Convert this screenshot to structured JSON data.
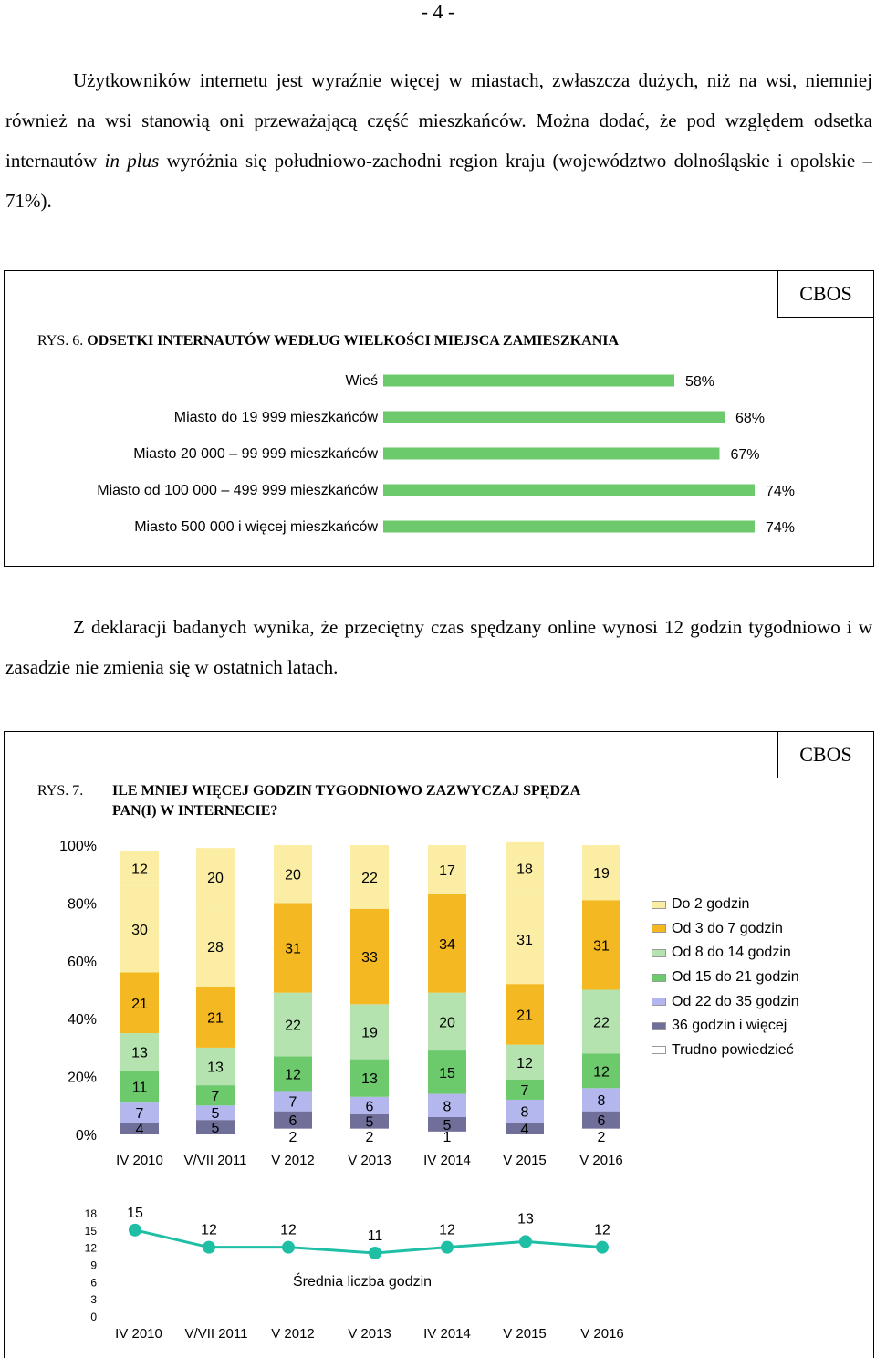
{
  "page_number": "- 4 -",
  "paragraph1": {
    "text_a": "Użytkowników internetu jest wyraźnie więcej w miastach, zwłaszcza dużych, niż na wsi, niemniej również na wsi stanowią oni przeważającą część mieszkańców. Można dodać, że pod względem odsetka internautów ",
    "text_italic": "in plus",
    "text_b": " wyróżnia się południowo-zachodni region kraju (województwo dolnośląskie i opolskie – 71%)."
  },
  "paragraph2": "Z deklaracji badanych wynika, że przeciętny czas spędzany online wynosi 12 godzin tygodniowo i w zasadzie nie zmienia się w ostatnich latach.",
  "figure6": {
    "badge": "CBOS",
    "label": "RYS. 6.",
    "title": "ODSETKI INTERNAUTÓW WEDŁUG WIELKOŚCI MIEJSCA ZAMIESZKANIA",
    "bar_color": "#6cc96c"
  },
  "figure7": {
    "badge": "CBOS",
    "label": "RYS. 7.",
    "title_line1": "ILE MNIEJ WIĘCEJ GODZIN TYGODNIOWO ZAZWYCZAJ SPĘDZA",
    "title_line2": "PAN(I) W INTERNECIE?"
  },
  "chart_data": [
    {
      "type": "bar",
      "orientation": "horizontal",
      "categories": [
        "Wieś",
        "Miasto do 19 999 mieszkańców",
        "Miasto 20 000 – 99 999 mieszkańców",
        "Miasto od 100 000 – 499 999 mieszkańców",
        "Miasto 500 000 i więcej mieszkańców"
      ],
      "values": [
        58,
        68,
        67,
        74,
        74
      ],
      "value_labels": [
        "58%",
        "68%",
        "67%",
        "74%",
        "74%"
      ],
      "xlim": [
        0,
        100
      ]
    },
    {
      "type": "bar",
      "stacked": true,
      "categories": [
        "IV 2010",
        "V/VII 2011",
        "V 2012",
        "V 2013",
        "IV 2014",
        "V 2015",
        "V 2016"
      ],
      "yticks": [
        "0%",
        "20%",
        "40%",
        "60%",
        "80%",
        "100%"
      ],
      "ylim": [
        0,
        100
      ],
      "series": [
        {
          "name": "Trudno powiedzieć",
          "color": "#ffffff",
          "values": [
            0,
            0,
            2,
            2,
            1,
            0,
            2
          ],
          "labels": [
            "",
            "",
            "2",
            "2",
            "1",
            "",
            "2"
          ]
        },
        {
          "name": "36 godzin i więcej",
          "color": "#6f6f9a",
          "values": [
            4,
            5,
            6,
            5,
            5,
            4,
            6
          ],
          "labels": [
            "4",
            "5",
            "6",
            "5",
            "5",
            "4",
            "6"
          ]
        },
        {
          "name": "Od 22 do 35 godzin",
          "color": "#b3b7ee",
          "values": [
            7,
            5,
            7,
            6,
            8,
            8,
            8
          ],
          "labels": [
            "7",
            "5",
            "7",
            "6",
            "8",
            "8",
            "8"
          ]
        },
        {
          "name": "Od 15 do 21 godzin",
          "color": "#6cc96c",
          "values": [
            11,
            7,
            12,
            13,
            15,
            7,
            12
          ],
          "labels": [
            "11",
            "7",
            "12",
            "13",
            "15",
            "7",
            "12"
          ]
        },
        {
          "name": "Od 8 do 14 godzin",
          "color": "#b4e3b0",
          "values": [
            13,
            13,
            22,
            19,
            20,
            12,
            22
          ],
          "labels": [
            "13",
            "13",
            "22",
            "19",
            "20",
            "12",
            "22"
          ]
        },
        {
          "name": "Od 3 do 7 godzin",
          "color": "#f4b922",
          "values": [
            21,
            21,
            31,
            33,
            34,
            21,
            31
          ],
          "labels": [
            "21",
            "21",
            "31",
            "33",
            "34",
            "21",
            "31"
          ]
        },
        {
          "name": "Do 2 godzin",
          "color": "#fbeea4",
          "values": [
            30,
            28,
            20,
            22,
            17,
            31,
            19
          ],
          "labels": [
            "30",
            "28",
            "20",
            "22",
            "17",
            "31",
            "19"
          ]
        },
        {
          "name": "",
          "color": "#fbeea4",
          "values": [
            12,
            20,
            0,
            0,
            0,
            18,
            0
          ],
          "labels": [
            "12",
            "20",
            "",
            "",
            "",
            "18",
            ""
          ]
        }
      ],
      "legend": [
        "Do 2 godzin",
        "Od 3 do 7 godzin",
        "Od 8 do 14 godzin",
        "Od 15 do 21 godzin",
        "Od 22 do 35 godzin",
        "36 godzin i więcej",
        "Trudno powiedzieć"
      ],
      "legend_colors": [
        "#fbeea4",
        "#f4b922",
        "#b4e3b0",
        "#6cc96c",
        "#b3b7ee",
        "#6f6f9a",
        "#ffffff"
      ],
      "legend_placement": "right"
    },
    {
      "type": "line",
      "categories": [
        "IV 2010",
        "V/VII 2011",
        "V 2012",
        "V 2013",
        "IV 2014",
        "V 2015",
        "V 2016"
      ],
      "series": [
        {
          "name": "Średnia liczba godzin",
          "values": [
            15,
            12,
            12,
            11,
            12,
            13,
            12
          ]
        }
      ],
      "yticks": [
        "0",
        "3",
        "6",
        "9",
        "12",
        "15",
        "18"
      ],
      "ylim": [
        0,
        18
      ],
      "color": "#1fbfa6"
    }
  ]
}
